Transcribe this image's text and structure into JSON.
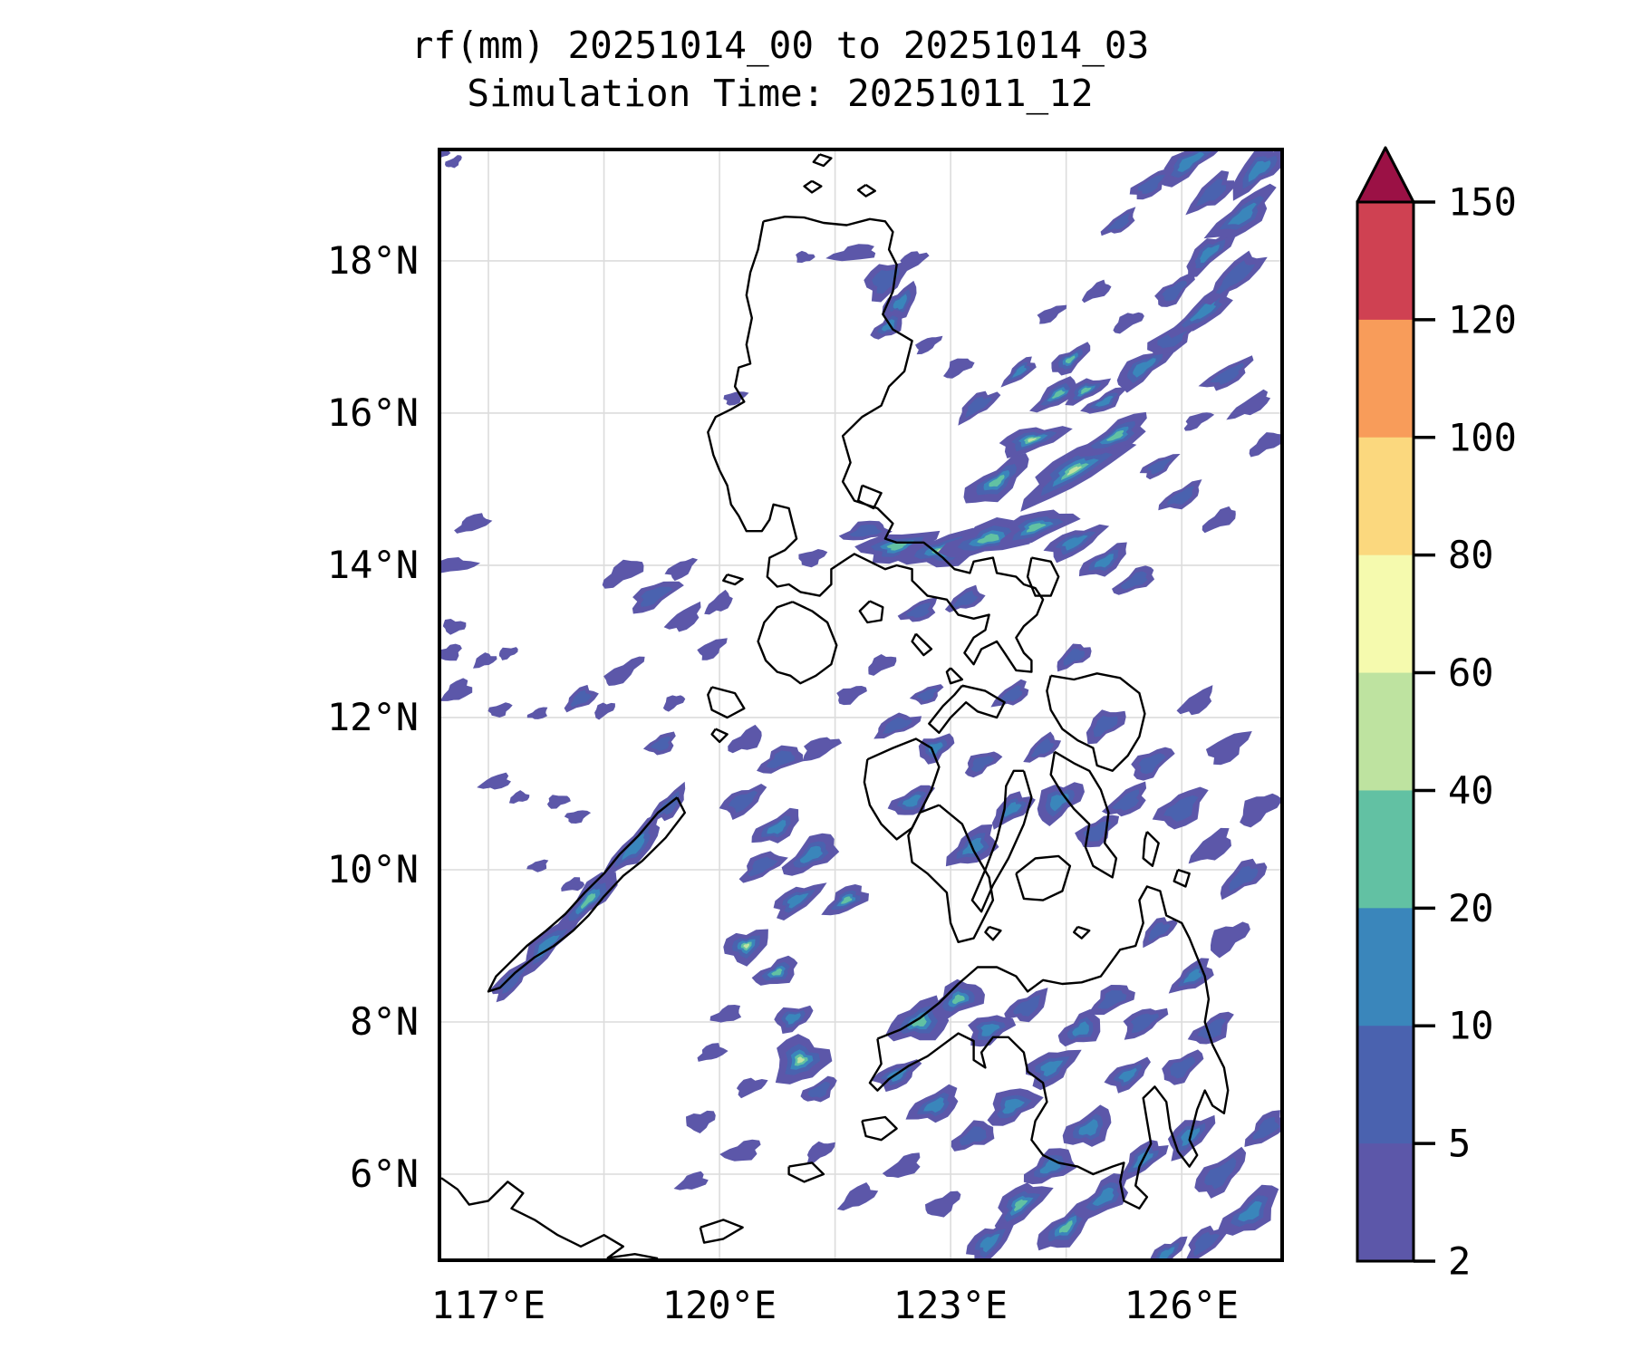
{
  "figure": {
    "title_line1": "rf(mm) 20251014_00 to 20251014_03",
    "title_line2": "Simulation Time: 20251011_12"
  },
  "axes": {
    "xticks": [
      "117°E",
      "120°E",
      "123°E",
      "126°E"
    ],
    "yticks": [
      "18°N",
      "16°N",
      "14°N",
      "12°N",
      "10°N",
      "8°N",
      "6°N"
    ]
  },
  "colorbar": {
    "ticks": [
      "150",
      "120",
      "100",
      "80",
      "60",
      "40",
      "20",
      "10",
      "5",
      "2"
    ],
    "levels": [
      2,
      5,
      10,
      20,
      40,
      60,
      80,
      100,
      120,
      150
    ],
    "segment_colors_top_to_bottom": [
      "#cf4152",
      "#f89c5a",
      "#fbd87e",
      "#f5faae",
      "#bee3a0",
      "#62c1a3",
      "#3a86bb",
      "#4a62af",
      "#5c57a9"
    ],
    "over_color": "#9b1145",
    "outline_color": "#000000"
  },
  "chart_data": {
    "type": "heatmap",
    "title": "rf(mm) 20251014_00 to 20251014_03",
    "subtitle": "Simulation Time: 20251011_12",
    "variable": "rf (mm)",
    "period_start": "20251014_00",
    "period_end": "20251014_03",
    "simulation_time": "20251011_12",
    "region": "Philippines",
    "lon_range": [
      116.388,
      127.28
    ],
    "lat_range": [
      4.893,
      19.44
    ],
    "x_tick_lons": [
      117,
      120,
      123,
      126
    ],
    "y_tick_lats": [
      18,
      16,
      14,
      12,
      10,
      8,
      6
    ],
    "grid_lons": [
      117,
      118.5,
      120,
      121.5,
      123,
      124.5,
      126
    ],
    "grid_lats": [
      6,
      8,
      10,
      12,
      14,
      16,
      18
    ],
    "grid": true,
    "legend_position": "right",
    "contour_levels_mm": [
      2,
      5,
      10,
      20,
      40,
      60,
      80,
      100,
      120,
      150
    ],
    "level_colors": [
      "#5c57a9",
      "#4a62af",
      "#3a86bb",
      "#62c1a3",
      "#bee3a0",
      "#f5faae",
      "#fbd87e",
      "#f89c5a",
      "#cf4152"
    ],
    "over_color": "#9b1145",
    "gridline_color": "#dcdcdc",
    "coastline_color": "#000000",
    "rain_cells": [
      [
        124.6,
        15.25,
        0.75,
        0.22,
        -30,
        4
      ],
      [
        124.05,
        15.65,
        0.45,
        0.15,
        -15,
        4
      ],
      [
        123.6,
        15.1,
        0.5,
        0.18,
        -35,
        3
      ],
      [
        125.15,
        15.7,
        0.5,
        0.16,
        -30,
        3
      ],
      [
        124.4,
        16.25,
        0.35,
        0.14,
        -30,
        3
      ],
      [
        124.75,
        16.3,
        0.3,
        0.12,
        -25,
        3
      ],
      [
        124.55,
        16.7,
        0.3,
        0.12,
        -35,
        3
      ],
      [
        125.0,
        16.15,
        0.3,
        0.1,
        -30,
        2
      ],
      [
        123.9,
        16.55,
        0.25,
        0.1,
        -40,
        2
      ],
      [
        123.35,
        16.1,
        0.3,
        0.12,
        -35,
        1
      ],
      [
        125.5,
        16.6,
        0.45,
        0.15,
        -35,
        2
      ],
      [
        125.9,
        17.0,
        0.4,
        0.14,
        -35,
        1
      ],
      [
        126.3,
        17.35,
        0.5,
        0.15,
        -40,
        2
      ],
      [
        126.7,
        17.8,
        0.45,
        0.15,
        -40,
        1
      ],
      [
        126.35,
        18.1,
        0.4,
        0.14,
        -40,
        2
      ],
      [
        125.9,
        17.6,
        0.3,
        0.12,
        -40,
        1
      ],
      [
        126.8,
        18.6,
        0.5,
        0.18,
        -40,
        2
      ],
      [
        126.4,
        18.9,
        0.35,
        0.15,
        -40,
        1
      ],
      [
        127.0,
        19.2,
        0.45,
        0.18,
        -40,
        2
      ],
      [
        126.1,
        19.3,
        0.5,
        0.15,
        -35,
        2
      ],
      [
        125.6,
        19.0,
        0.3,
        0.12,
        -35,
        1
      ],
      [
        125.2,
        18.5,
        0.25,
        0.1,
        -35,
        1
      ],
      [
        124.9,
        17.6,
        0.2,
        0.09,
        -30,
        0
      ],
      [
        125.3,
        17.2,
        0.22,
        0.09,
        -30,
        0
      ],
      [
        124.3,
        17.3,
        0.2,
        0.08,
        -30,
        0
      ],
      [
        126.6,
        16.5,
        0.35,
        0.12,
        -30,
        1
      ],
      [
        126.9,
        16.1,
        0.3,
        0.1,
        -30,
        0
      ],
      [
        127.1,
        15.6,
        0.25,
        0.1,
        -30,
        0
      ],
      [
        126.2,
        15.9,
        0.2,
        0.08,
        -30,
        0
      ],
      [
        125.7,
        15.3,
        0.25,
        0.1,
        -30,
        1
      ],
      [
        126.0,
        14.9,
        0.3,
        0.12,
        -30,
        1
      ],
      [
        126.5,
        14.6,
        0.25,
        0.1,
        -30,
        0
      ],
      [
        123.1,
        16.6,
        0.2,
        0.1,
        -30,
        0
      ],
      [
        122.7,
        16.9,
        0.18,
        0.08,
        -30,
        0
      ],
      [
        122.3,
        14.25,
        0.5,
        0.18,
        -10,
        3
      ],
      [
        122.9,
        14.2,
        0.55,
        0.2,
        -12,
        4
      ],
      [
        123.5,
        14.35,
        0.6,
        0.2,
        -15,
        3
      ],
      [
        124.1,
        14.5,
        0.5,
        0.18,
        -20,
        3
      ],
      [
        124.6,
        14.3,
        0.4,
        0.15,
        -25,
        2
      ],
      [
        125.0,
        14.05,
        0.35,
        0.14,
        -30,
        2
      ],
      [
        125.4,
        13.8,
        0.3,
        0.12,
        -30,
        1
      ],
      [
        121.9,
        14.45,
        0.3,
        0.12,
        -10,
        1
      ],
      [
        122.15,
        17.75,
        0.3,
        0.2,
        -40,
        1
      ],
      [
        122.35,
        17.45,
        0.28,
        0.15,
        -45,
        2
      ],
      [
        122.2,
        17.15,
        0.25,
        0.12,
        -40,
        2
      ],
      [
        121.75,
        18.1,
        0.3,
        0.1,
        -10,
        0
      ],
      [
        122.5,
        18.0,
        0.2,
        0.1,
        -30,
        0
      ],
      [
        121.1,
        18.05,
        0.12,
        0.07,
        0,
        0
      ],
      [
        116.55,
        19.3,
        0.12,
        0.06,
        -30,
        0
      ],
      [
        116.42,
        19.42,
        0.1,
        0.05,
        -30,
        0
      ],
      [
        116.8,
        14.55,
        0.22,
        0.1,
        -20,
        0
      ],
      [
        116.55,
        14.0,
        0.28,
        0.09,
        -5,
        0
      ],
      [
        116.55,
        13.2,
        0.15,
        0.09,
        0,
        0
      ],
      [
        116.5,
        12.85,
        0.16,
        0.1,
        -20,
        0
      ],
      [
        116.6,
        12.35,
        0.2,
        0.12,
        -30,
        0
      ],
      [
        116.95,
        12.75,
        0.15,
        0.08,
        -20,
        0
      ],
      [
        117.25,
        12.85,
        0.13,
        0.07,
        -20,
        0
      ],
      [
        117.15,
        12.1,
        0.15,
        0.08,
        -20,
        0
      ],
      [
        117.65,
        12.05,
        0.13,
        0.07,
        -20,
        0
      ],
      [
        118.2,
        12.25,
        0.22,
        0.12,
        -30,
        1
      ],
      [
        118.5,
        12.1,
        0.15,
        0.08,
        -30,
        0
      ],
      [
        118.75,
        12.6,
        0.3,
        0.1,
        -35,
        0
      ],
      [
        119.25,
        11.65,
        0.2,
        0.12,
        -30,
        1
      ],
      [
        117.1,
        11.15,
        0.2,
        0.09,
        -15,
        0
      ],
      [
        117.4,
        10.95,
        0.13,
        0.07,
        -15,
        0
      ],
      [
        117.9,
        10.9,
        0.15,
        0.08,
        -15,
        0
      ],
      [
        118.15,
        10.7,
        0.15,
        0.08,
        -15,
        0
      ],
      [
        117.65,
        10.05,
        0.13,
        0.07,
        -15,
        0
      ],
      [
        118.1,
        9.8,
        0.15,
        0.08,
        -15,
        0
      ],
      [
        119.4,
        12.2,
        0.15,
        0.08,
        -30,
        0
      ],
      [
        119.9,
        12.9,
        0.2,
        0.1,
        -35,
        0
      ],
      [
        119.55,
        13.3,
        0.25,
        0.12,
        -35,
        0
      ],
      [
        120.0,
        13.5,
        0.2,
        0.1,
        -35,
        0
      ],
      [
        118.75,
        13.9,
        0.3,
        0.12,
        -30,
        0
      ],
      [
        119.15,
        13.6,
        0.35,
        0.14,
        -30,
        1
      ],
      [
        119.5,
        13.95,
        0.2,
        0.1,
        -30,
        0
      ],
      [
        118.9,
        10.3,
        0.5,
        0.15,
        -46,
        2
      ],
      [
        118.3,
        9.6,
        0.55,
        0.15,
        -46,
        3
      ],
      [
        117.75,
        9.0,
        0.5,
        0.14,
        -46,
        2
      ],
      [
        117.3,
        8.55,
        0.35,
        0.12,
        -46,
        1
      ],
      [
        119.35,
        10.85,
        0.3,
        0.12,
        -46,
        1
      ],
      [
        120.35,
        11.7,
        0.25,
        0.12,
        -30,
        0
      ],
      [
        120.8,
        11.45,
        0.3,
        0.14,
        -25,
        1
      ],
      [
        121.3,
        11.6,
        0.25,
        0.12,
        -25,
        0
      ],
      [
        120.3,
        10.9,
        0.3,
        0.15,
        -30,
        1
      ],
      [
        120.75,
        10.55,
        0.35,
        0.15,
        -30,
        2
      ],
      [
        121.2,
        10.2,
        0.4,
        0.18,
        -35,
        2
      ],
      [
        120.55,
        10.05,
        0.3,
        0.14,
        -30,
        1
      ],
      [
        121.0,
        9.6,
        0.35,
        0.15,
        -30,
        2
      ],
      [
        120.35,
        9.0,
        0.3,
        0.2,
        -20,
        4
      ],
      [
        120.75,
        8.65,
        0.3,
        0.15,
        -25,
        3
      ],
      [
        121.65,
        9.6,
        0.3,
        0.15,
        -30,
        3
      ],
      [
        121.05,
        7.5,
        0.35,
        0.3,
        -20,
        4
      ],
      [
        120.95,
        8.05,
        0.25,
        0.15,
        -20,
        2
      ],
      [
        121.3,
        7.1,
        0.25,
        0.12,
        -30,
        1
      ],
      [
        120.1,
        8.1,
        0.2,
        0.1,
        -20,
        0
      ],
      [
        119.9,
        7.6,
        0.18,
        0.1,
        -20,
        0
      ],
      [
        120.4,
        7.15,
        0.2,
        0.1,
        -20,
        0
      ],
      [
        119.75,
        6.7,
        0.2,
        0.12,
        -20,
        0
      ],
      [
        120.3,
        6.3,
        0.25,
        0.12,
        -20,
        0
      ],
      [
        119.65,
        5.9,
        0.2,
        0.1,
        -20,
        0
      ],
      [
        122.3,
        11.9,
        0.3,
        0.12,
        -20,
        1
      ],
      [
        122.8,
        11.6,
        0.25,
        0.15,
        -30,
        2
      ],
      [
        122.5,
        10.9,
        0.3,
        0.15,
        -30,
        2
      ],
      [
        123.3,
        10.3,
        0.35,
        0.2,
        -35,
        2
      ],
      [
        123.8,
        10.8,
        0.3,
        0.15,
        -35,
        2
      ],
      [
        124.4,
        10.9,
        0.35,
        0.2,
        -35,
        2
      ],
      [
        124.9,
        10.5,
        0.3,
        0.15,
        -35,
        1
      ],
      [
        125.3,
        10.9,
        0.3,
        0.15,
        -35,
        1
      ],
      [
        124.2,
        11.6,
        0.25,
        0.12,
        -35,
        1
      ],
      [
        125.0,
        11.9,
        0.3,
        0.15,
        -35,
        1
      ],
      [
        125.6,
        11.4,
        0.3,
        0.15,
        -35,
        1
      ],
      [
        126.0,
        10.8,
        0.35,
        0.2,
        -35,
        1
      ],
      [
        126.4,
        10.3,
        0.3,
        0.15,
        -35,
        0
      ],
      [
        126.8,
        9.9,
        0.35,
        0.15,
        -35,
        1
      ],
      [
        127.0,
        10.8,
        0.3,
        0.15,
        -35,
        0
      ],
      [
        126.6,
        11.6,
        0.3,
        0.15,
        -35,
        0
      ],
      [
        126.2,
        12.2,
        0.25,
        0.12,
        -35,
        0
      ],
      [
        122.6,
        8.0,
        0.4,
        0.25,
        -20,
        3
      ],
      [
        123.1,
        8.3,
        0.35,
        0.2,
        -25,
        3
      ],
      [
        123.5,
        7.9,
        0.3,
        0.18,
        -25,
        2
      ],
      [
        122.3,
        7.3,
        0.3,
        0.15,
        -25,
        2
      ],
      [
        122.8,
        6.9,
        0.35,
        0.18,
        -25,
        2
      ],
      [
        123.3,
        6.5,
        0.3,
        0.15,
        -25,
        1
      ],
      [
        123.8,
        6.9,
        0.35,
        0.2,
        -30,
        2
      ],
      [
        124.3,
        7.4,
        0.35,
        0.2,
        -30,
        2
      ],
      [
        124.0,
        8.2,
        0.3,
        0.15,
        -30,
        1
      ],
      [
        124.7,
        7.9,
        0.3,
        0.18,
        -30,
        2
      ],
      [
        125.1,
        8.3,
        0.3,
        0.15,
        -30,
        1
      ],
      [
        125.5,
        8.0,
        0.3,
        0.15,
        -30,
        1
      ],
      [
        125.3,
        7.3,
        0.3,
        0.15,
        -30,
        2
      ],
      [
        124.8,
        6.6,
        0.35,
        0.2,
        -30,
        2
      ],
      [
        124.3,
        6.1,
        0.35,
        0.18,
        -30,
        2
      ],
      [
        123.9,
        5.6,
        0.4,
        0.2,
        -40,
        3
      ],
      [
        123.5,
        5.1,
        0.35,
        0.18,
        -40,
        2
      ],
      [
        124.5,
        5.3,
        0.45,
        0.18,
        -40,
        3
      ],
      [
        125.0,
        5.7,
        0.4,
        0.18,
        -40,
        2
      ],
      [
        125.5,
        6.2,
        0.35,
        0.15,
        -40,
        2
      ],
      [
        126.1,
        6.5,
        0.35,
        0.18,
        -40,
        2
      ],
      [
        126.5,
        6.0,
        0.4,
        0.18,
        -40,
        1
      ],
      [
        126.9,
        5.5,
        0.45,
        0.2,
        -40,
        2
      ],
      [
        127.1,
        6.6,
        0.3,
        0.15,
        -40,
        1
      ],
      [
        126.3,
        5.1,
        0.3,
        0.15,
        -40,
        1
      ],
      [
        125.8,
        4.95,
        0.3,
        0.12,
        -40,
        2
      ],
      [
        122.9,
        5.6,
        0.25,
        0.12,
        -30,
        0
      ],
      [
        122.4,
        6.1,
        0.25,
        0.12,
        -30,
        0
      ],
      [
        121.8,
        5.7,
        0.25,
        0.12,
        -30,
        0
      ],
      [
        121.3,
        6.3,
        0.2,
        0.1,
        -30,
        0
      ],
      [
        126.0,
        7.4,
        0.3,
        0.15,
        -35,
        1
      ],
      [
        126.4,
        7.9,
        0.3,
        0.15,
        -35,
        1
      ],
      [
        126.15,
        8.6,
        0.3,
        0.15,
        -35,
        2
      ],
      [
        125.7,
        9.2,
        0.25,
        0.12,
        -35,
        1
      ],
      [
        126.6,
        9.1,
        0.3,
        0.15,
        -35,
        0
      ],
      [
        121.2,
        14.1,
        0.18,
        0.1,
        -20,
        0
      ],
      [
        122.6,
        13.4,
        0.25,
        0.12,
        -25,
        1
      ],
      [
        123.2,
        13.55,
        0.25,
        0.12,
        -25,
        1
      ],
      [
        122.1,
        12.7,
        0.2,
        0.1,
        -25,
        0
      ],
      [
        121.7,
        12.3,
        0.2,
        0.1,
        -25,
        0
      ],
      [
        122.7,
        12.3,
        0.2,
        0.1,
        -25,
        1
      ],
      [
        123.8,
        12.3,
        0.25,
        0.12,
        -30,
        1
      ],
      [
        124.6,
        12.8,
        0.25,
        0.12,
        -30,
        1
      ],
      [
        123.4,
        11.4,
        0.25,
        0.12,
        -30,
        1
      ],
      [
        120.2,
        16.2,
        0.15,
        0.08,
        -20,
        0
      ]
    ]
  }
}
